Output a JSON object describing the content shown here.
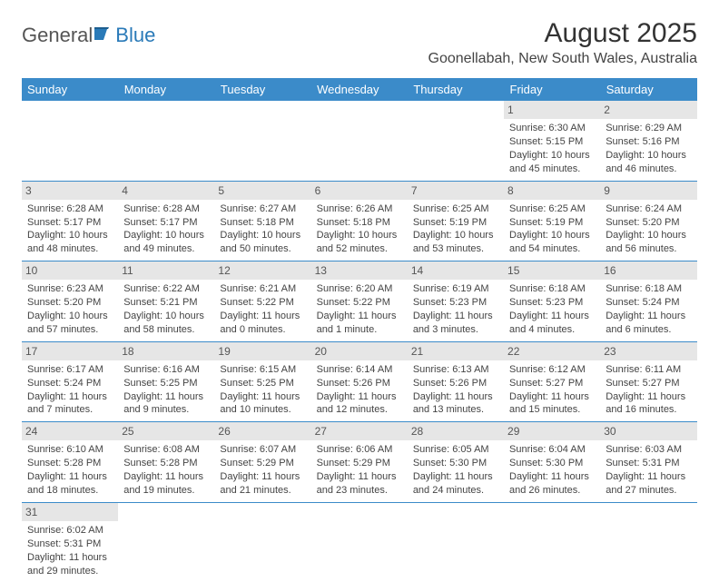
{
  "logo": {
    "part1": "General",
    "part2": "Blue"
  },
  "header": {
    "month_title": "August 2025",
    "location": "Goonellabah, New South Wales, Australia"
  },
  "colors": {
    "header_bg": "#3b8bc9",
    "header_text": "#ffffff",
    "daynum_bg": "#e6e6e6",
    "row_border": "#3b8bc9",
    "logo_accent": "#2a7ab8"
  },
  "day_headers": [
    "Sunday",
    "Monday",
    "Tuesday",
    "Wednesday",
    "Thursday",
    "Friday",
    "Saturday"
  ],
  "weeks": [
    [
      null,
      null,
      null,
      null,
      null,
      {
        "n": "1",
        "sunrise": "Sunrise: 6:30 AM",
        "sunset": "Sunset: 5:15 PM",
        "day1": "Daylight: 10 hours",
        "day2": "and 45 minutes."
      },
      {
        "n": "2",
        "sunrise": "Sunrise: 6:29 AM",
        "sunset": "Sunset: 5:16 PM",
        "day1": "Daylight: 10 hours",
        "day2": "and 46 minutes."
      }
    ],
    [
      {
        "n": "3",
        "sunrise": "Sunrise: 6:28 AM",
        "sunset": "Sunset: 5:17 PM",
        "day1": "Daylight: 10 hours",
        "day2": "and 48 minutes."
      },
      {
        "n": "4",
        "sunrise": "Sunrise: 6:28 AM",
        "sunset": "Sunset: 5:17 PM",
        "day1": "Daylight: 10 hours",
        "day2": "and 49 minutes."
      },
      {
        "n": "5",
        "sunrise": "Sunrise: 6:27 AM",
        "sunset": "Sunset: 5:18 PM",
        "day1": "Daylight: 10 hours",
        "day2": "and 50 minutes."
      },
      {
        "n": "6",
        "sunrise": "Sunrise: 6:26 AM",
        "sunset": "Sunset: 5:18 PM",
        "day1": "Daylight: 10 hours",
        "day2": "and 52 minutes."
      },
      {
        "n": "7",
        "sunrise": "Sunrise: 6:25 AM",
        "sunset": "Sunset: 5:19 PM",
        "day1": "Daylight: 10 hours",
        "day2": "and 53 minutes."
      },
      {
        "n": "8",
        "sunrise": "Sunrise: 6:25 AM",
        "sunset": "Sunset: 5:19 PM",
        "day1": "Daylight: 10 hours",
        "day2": "and 54 minutes."
      },
      {
        "n": "9",
        "sunrise": "Sunrise: 6:24 AM",
        "sunset": "Sunset: 5:20 PM",
        "day1": "Daylight: 10 hours",
        "day2": "and 56 minutes."
      }
    ],
    [
      {
        "n": "10",
        "sunrise": "Sunrise: 6:23 AM",
        "sunset": "Sunset: 5:20 PM",
        "day1": "Daylight: 10 hours",
        "day2": "and 57 minutes."
      },
      {
        "n": "11",
        "sunrise": "Sunrise: 6:22 AM",
        "sunset": "Sunset: 5:21 PM",
        "day1": "Daylight: 10 hours",
        "day2": "and 58 minutes."
      },
      {
        "n": "12",
        "sunrise": "Sunrise: 6:21 AM",
        "sunset": "Sunset: 5:22 PM",
        "day1": "Daylight: 11 hours",
        "day2": "and 0 minutes."
      },
      {
        "n": "13",
        "sunrise": "Sunrise: 6:20 AM",
        "sunset": "Sunset: 5:22 PM",
        "day1": "Daylight: 11 hours",
        "day2": "and 1 minute."
      },
      {
        "n": "14",
        "sunrise": "Sunrise: 6:19 AM",
        "sunset": "Sunset: 5:23 PM",
        "day1": "Daylight: 11 hours",
        "day2": "and 3 minutes."
      },
      {
        "n": "15",
        "sunrise": "Sunrise: 6:18 AM",
        "sunset": "Sunset: 5:23 PM",
        "day1": "Daylight: 11 hours",
        "day2": "and 4 minutes."
      },
      {
        "n": "16",
        "sunrise": "Sunrise: 6:18 AM",
        "sunset": "Sunset: 5:24 PM",
        "day1": "Daylight: 11 hours",
        "day2": "and 6 minutes."
      }
    ],
    [
      {
        "n": "17",
        "sunrise": "Sunrise: 6:17 AM",
        "sunset": "Sunset: 5:24 PM",
        "day1": "Daylight: 11 hours",
        "day2": "and 7 minutes."
      },
      {
        "n": "18",
        "sunrise": "Sunrise: 6:16 AM",
        "sunset": "Sunset: 5:25 PM",
        "day1": "Daylight: 11 hours",
        "day2": "and 9 minutes."
      },
      {
        "n": "19",
        "sunrise": "Sunrise: 6:15 AM",
        "sunset": "Sunset: 5:25 PM",
        "day1": "Daylight: 11 hours",
        "day2": "and 10 minutes."
      },
      {
        "n": "20",
        "sunrise": "Sunrise: 6:14 AM",
        "sunset": "Sunset: 5:26 PM",
        "day1": "Daylight: 11 hours",
        "day2": "and 12 minutes."
      },
      {
        "n": "21",
        "sunrise": "Sunrise: 6:13 AM",
        "sunset": "Sunset: 5:26 PM",
        "day1": "Daylight: 11 hours",
        "day2": "and 13 minutes."
      },
      {
        "n": "22",
        "sunrise": "Sunrise: 6:12 AM",
        "sunset": "Sunset: 5:27 PM",
        "day1": "Daylight: 11 hours",
        "day2": "and 15 minutes."
      },
      {
        "n": "23",
        "sunrise": "Sunrise: 6:11 AM",
        "sunset": "Sunset: 5:27 PM",
        "day1": "Daylight: 11 hours",
        "day2": "and 16 minutes."
      }
    ],
    [
      {
        "n": "24",
        "sunrise": "Sunrise: 6:10 AM",
        "sunset": "Sunset: 5:28 PM",
        "day1": "Daylight: 11 hours",
        "day2": "and 18 minutes."
      },
      {
        "n": "25",
        "sunrise": "Sunrise: 6:08 AM",
        "sunset": "Sunset: 5:28 PM",
        "day1": "Daylight: 11 hours",
        "day2": "and 19 minutes."
      },
      {
        "n": "26",
        "sunrise": "Sunrise: 6:07 AM",
        "sunset": "Sunset: 5:29 PM",
        "day1": "Daylight: 11 hours",
        "day2": "and 21 minutes."
      },
      {
        "n": "27",
        "sunrise": "Sunrise: 6:06 AM",
        "sunset": "Sunset: 5:29 PM",
        "day1": "Daylight: 11 hours",
        "day2": "and 23 minutes."
      },
      {
        "n": "28",
        "sunrise": "Sunrise: 6:05 AM",
        "sunset": "Sunset: 5:30 PM",
        "day1": "Daylight: 11 hours",
        "day2": "and 24 minutes."
      },
      {
        "n": "29",
        "sunrise": "Sunrise: 6:04 AM",
        "sunset": "Sunset: 5:30 PM",
        "day1": "Daylight: 11 hours",
        "day2": "and 26 minutes."
      },
      {
        "n": "30",
        "sunrise": "Sunrise: 6:03 AM",
        "sunset": "Sunset: 5:31 PM",
        "day1": "Daylight: 11 hours",
        "day2": "and 27 minutes."
      }
    ],
    [
      {
        "n": "31",
        "sunrise": "Sunrise: 6:02 AM",
        "sunset": "Sunset: 5:31 PM",
        "day1": "Daylight: 11 hours",
        "day2": "and 29 minutes."
      },
      null,
      null,
      null,
      null,
      null,
      null
    ]
  ]
}
